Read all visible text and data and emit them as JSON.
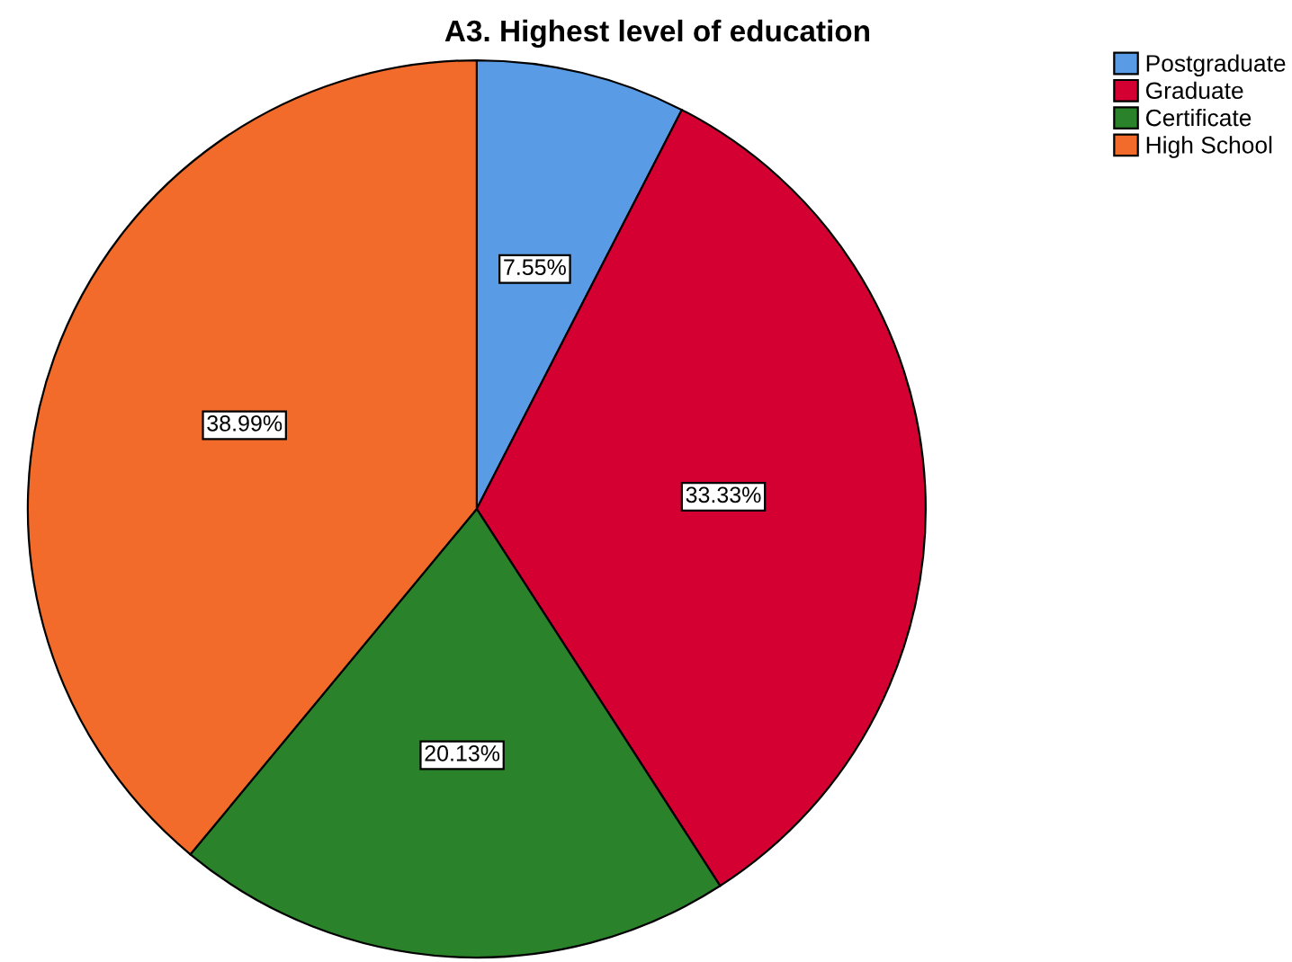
{
  "chart_data": {
    "type": "pie",
    "title": "A3. Highest level of education",
    "categories": [
      "Postgraduate",
      "Graduate",
      "Certificate",
      "High School"
    ],
    "values": [
      7.55,
      33.33,
      20.13,
      38.99
    ],
    "value_labels": [
      "7.55%",
      "33.33%",
      "20.13%",
      "38.99%"
    ],
    "colors": [
      "#5a9be6",
      "#d50032",
      "#2a832a",
      "#f26b2b"
    ],
    "legend": "top right"
  }
}
